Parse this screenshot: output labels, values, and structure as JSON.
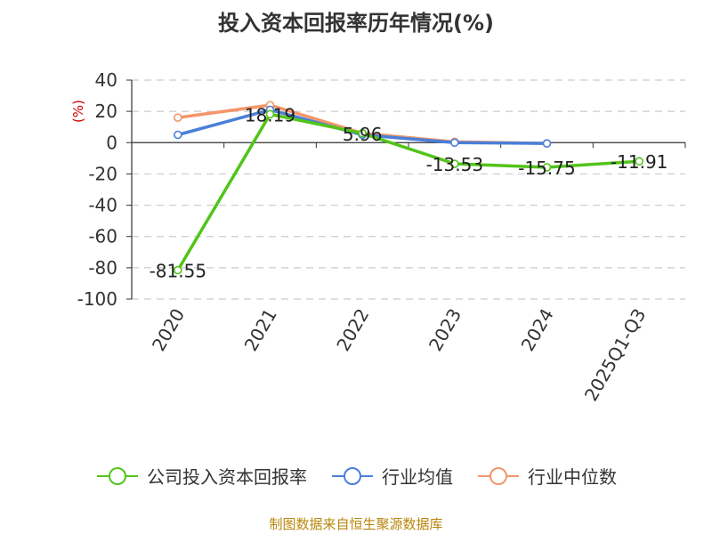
{
  "chart_data": {
    "type": "line",
    "title": "投入资本回报率历年情况(%)",
    "ylabel": "(%)",
    "categories": [
      "2020",
      "2021",
      "2022",
      "2023",
      "2024",
      "2025Q1-Q3"
    ],
    "ylim": [
      -100,
      40
    ],
    "yticks": [
      40,
      20,
      0,
      -20,
      -40,
      -60,
      -80,
      -100
    ],
    "grid": true,
    "legend_position": "bottom",
    "series": [
      {
        "name": "公司投入资本回报率",
        "color": "#52c41a",
        "values": [
          -81.55,
          18.19,
          5.96,
          -13.53,
          -15.75,
          -11.91
        ],
        "labels": [
          "-81.55",
          "18.19",
          "5.96",
          "-13.53",
          "-15.75",
          "-11.91"
        ]
      },
      {
        "name": "行业均值",
        "color": "#4a7fd8",
        "values": [
          5,
          21,
          5,
          0,
          -0.5,
          null
        ]
      },
      {
        "name": "行业中位数",
        "color": "#f4956a",
        "values": [
          16,
          24,
          6,
          0.5,
          -0.5,
          null
        ]
      }
    ]
  },
  "source": "制图数据来自恒生聚源数据库"
}
